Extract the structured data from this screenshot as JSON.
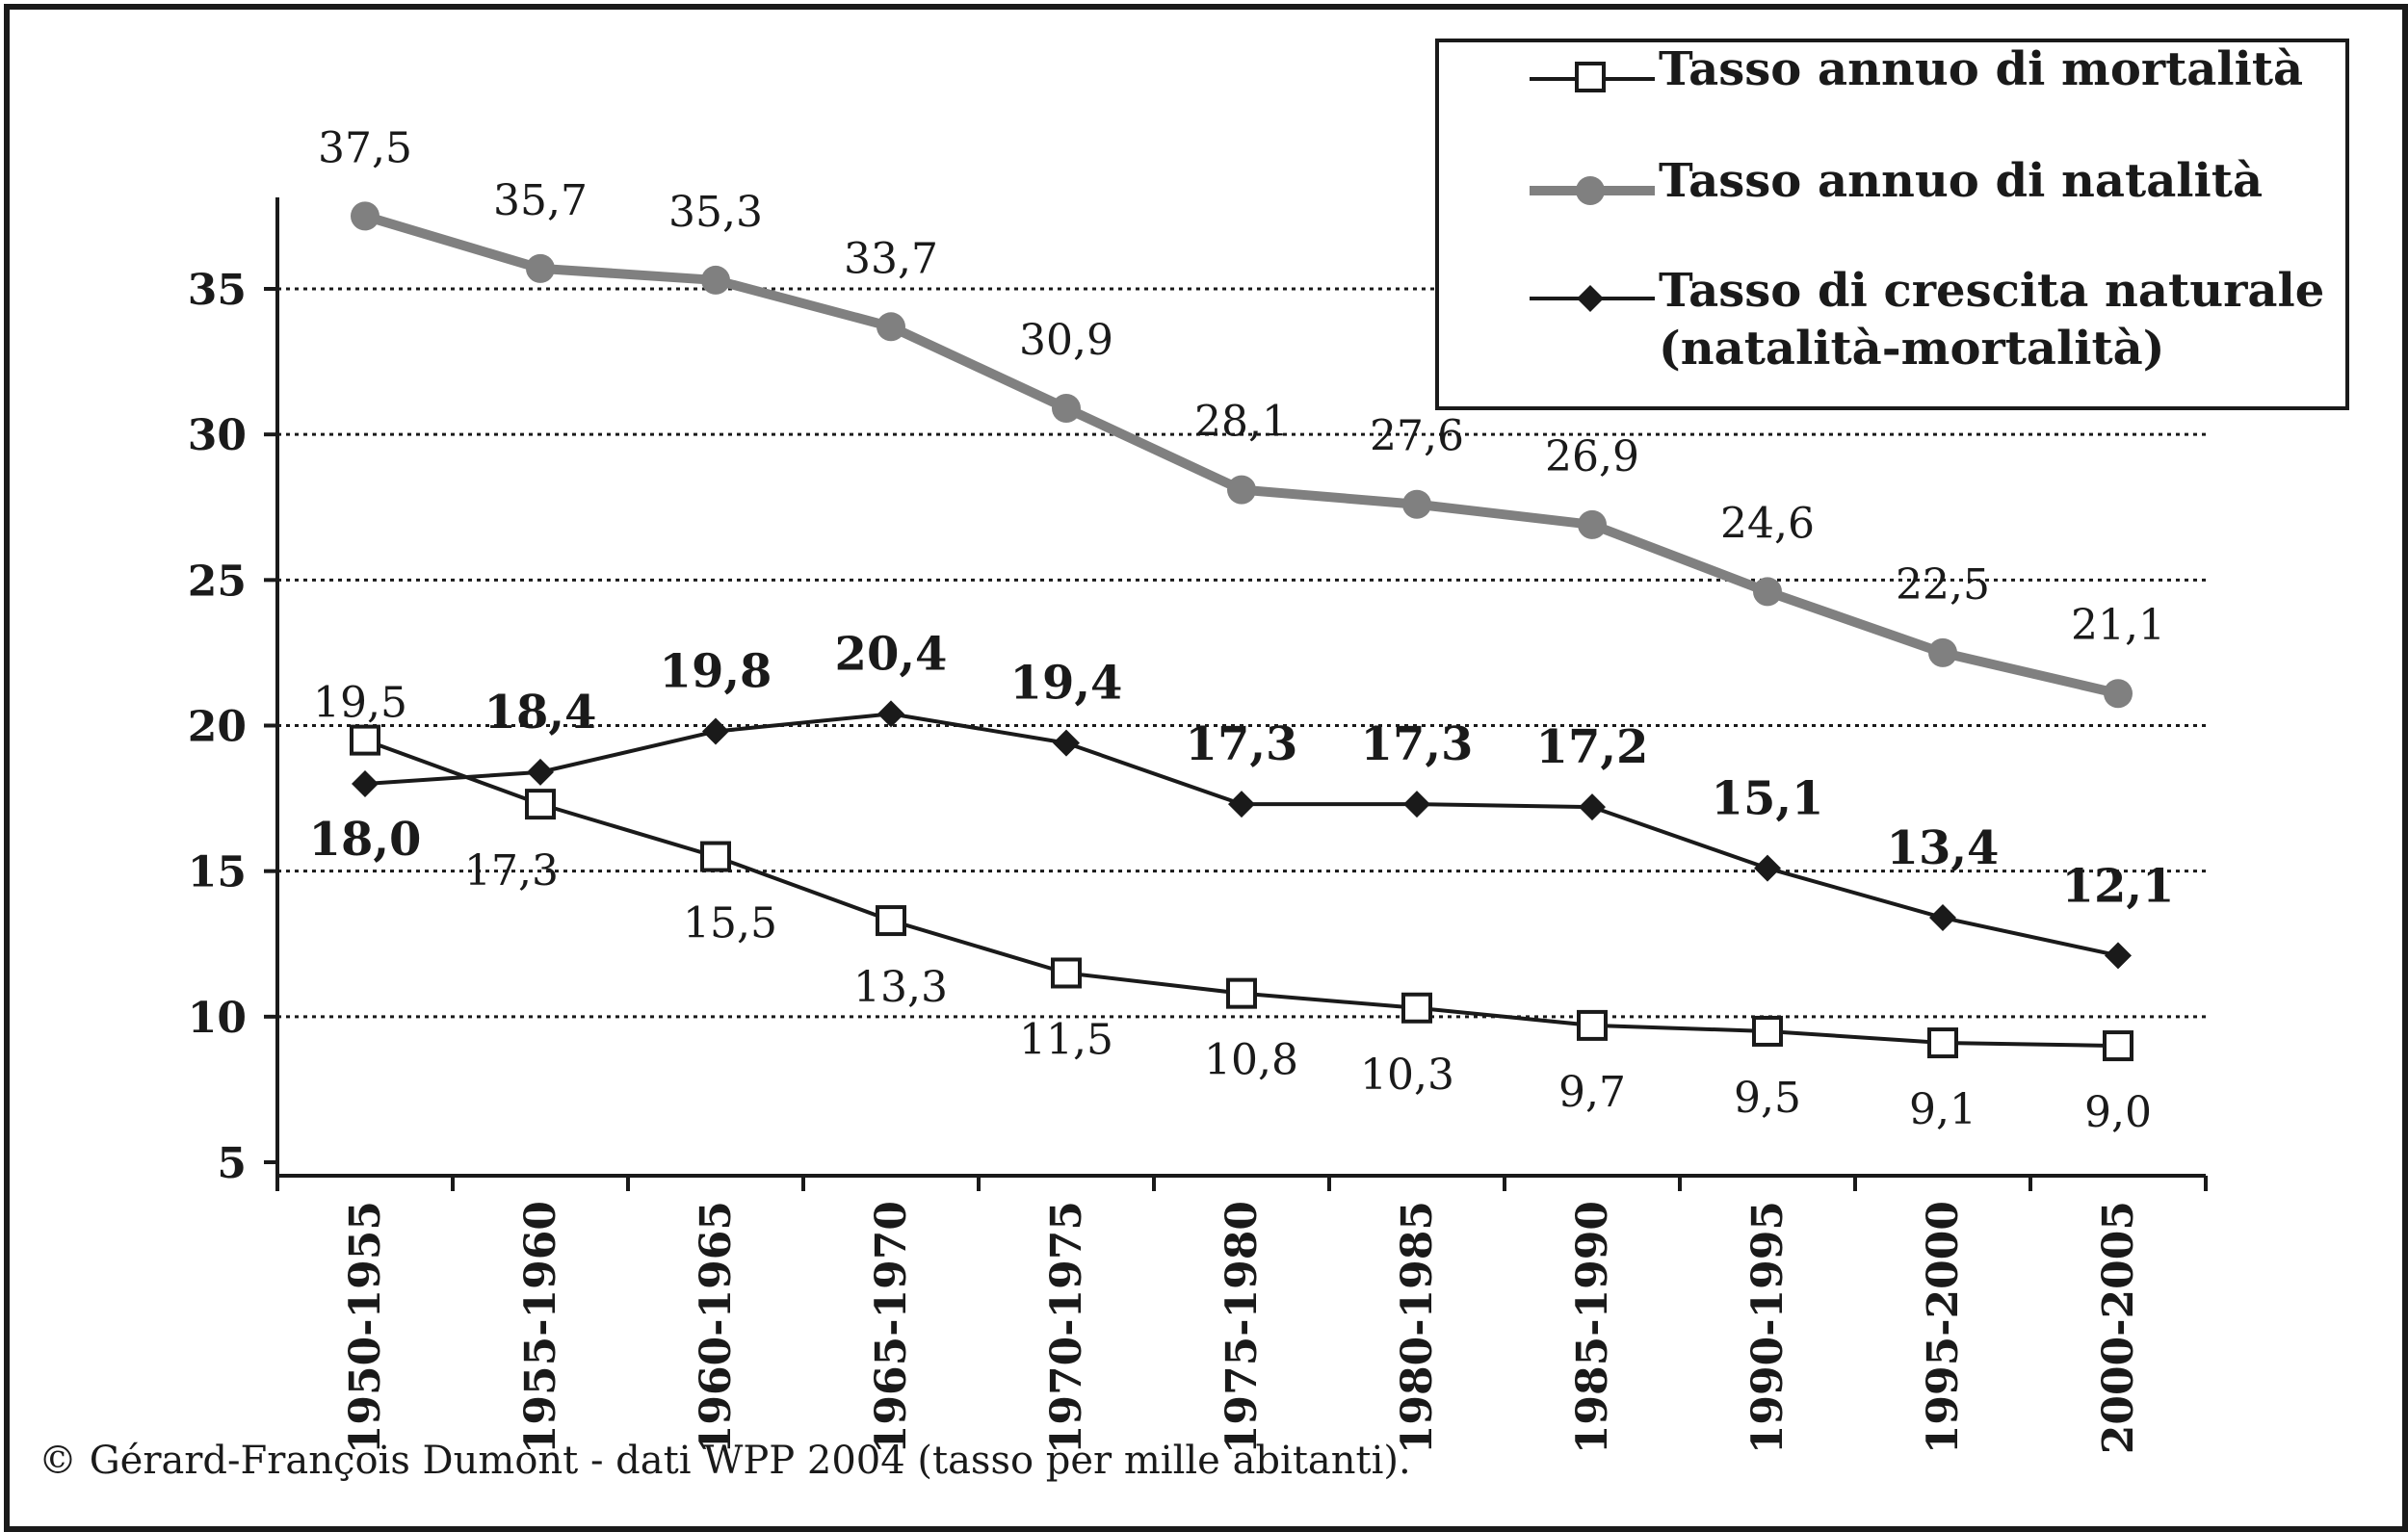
{
  "chart_data": {
    "type": "line",
    "categories": [
      "1950-1955",
      "1955-1960",
      "1960-1965",
      "1965-1970",
      "1970-1975",
      "1975-1980",
      "1980-1985",
      "1985-1990",
      "1990-1995",
      "1995-2000",
      "2000-2005"
    ],
    "ylim": [
      5,
      38
    ],
    "yticks": [
      5,
      10,
      15,
      20,
      25,
      30,
      35
    ],
    "grid": true,
    "legend_position": "top-right",
    "series": [
      {
        "key": "mortalita",
        "name": "Tasso annuo di mortalità",
        "color": "#1a1a1a",
        "marker": "square-open",
        "values": [
          19.5,
          17.3,
          15.5,
          13.3,
          11.5,
          10.8,
          10.3,
          9.7,
          9.5,
          9.1,
          9.0
        ],
        "labels": [
          "19,5",
          "17,3",
          "15,5",
          "13,3",
          "11,5",
          "10,8",
          "10,3",
          "9,7",
          "9,5",
          "9,1",
          "9,0"
        ]
      },
      {
        "key": "natalita",
        "name": "Tasso annuo di natalità",
        "color": "#808080",
        "marker": "circle",
        "values": [
          37.5,
          35.7,
          35.3,
          33.7,
          30.9,
          28.1,
          27.6,
          26.9,
          24.6,
          22.5,
          21.1
        ],
        "labels": [
          "37,5",
          "35,7",
          "35,3",
          "33,7",
          "30,9",
          "28,1",
          "27,6",
          "26,9",
          "24,6",
          "22,5",
          "21,1"
        ]
      },
      {
        "key": "crescita",
        "name": "Tasso di crescita naturale",
        "name_line2": "(natalità-mortalità)",
        "color": "#1a1a1a",
        "marker": "diamond",
        "values": [
          18.0,
          18.4,
          19.8,
          20.4,
          19.4,
          17.3,
          17.3,
          17.2,
          15.1,
          13.4,
          12.1
        ],
        "labels": [
          "18,0",
          "18,4",
          "19,8",
          "20,4",
          "19,4",
          "17,3",
          "17,3",
          "17,2",
          "15,1",
          "13,4",
          "12,1"
        ]
      }
    ]
  },
  "source": "© Gérard-François Dumont - dati WPP 2004 (tasso per mille abitanti)."
}
